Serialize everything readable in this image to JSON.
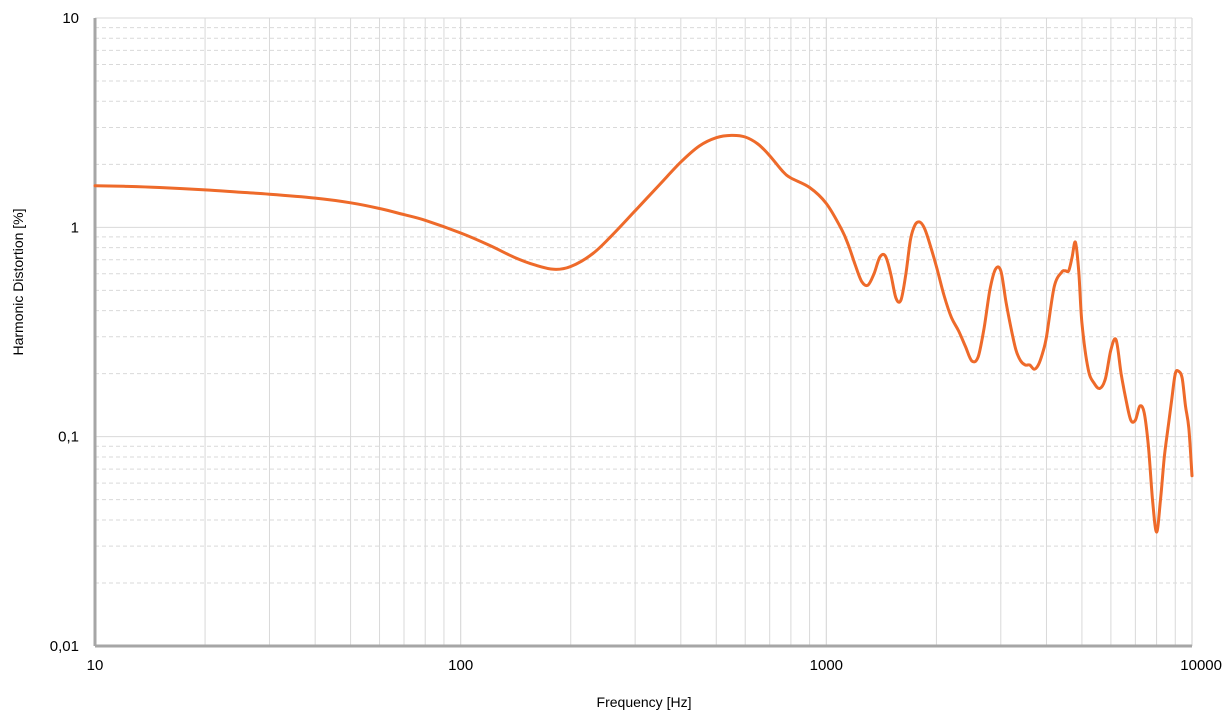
{
  "chart_data": {
    "type": "line",
    "title": "",
    "xlabel": "Frequency [Hz]",
    "ylabel": "Harmonic Distortion [%]",
    "xscale": "log",
    "yscale": "log",
    "xlim": [
      10,
      10000
    ],
    "ylim": [
      0.01,
      10
    ],
    "grid": true,
    "legend": "none",
    "x_ticks": [
      {
        "value": 10,
        "label": "10"
      },
      {
        "value": 100,
        "label": "100"
      },
      {
        "value": 1000,
        "label": "1000"
      },
      {
        "value": 10000,
        "label": "10000"
      }
    ],
    "y_ticks": [
      {
        "value": 0.01,
        "label": "0,01"
      },
      {
        "value": 0.1,
        "label": "0,1"
      },
      {
        "value": 1,
        "label": "1"
      },
      {
        "value": 10,
        "label": "10"
      }
    ],
    "colors": {
      "series": "#ee6a2a",
      "grid": "#d9d9d9",
      "axis": "#a6a6a6"
    },
    "series": [
      {
        "x": [
          10,
          12,
          15,
          20,
          25,
          30,
          40,
          50,
          60,
          70,
          80,
          100,
          120,
          140,
          160,
          180,
          200,
          230,
          260,
          300,
          350,
          400,
          450,
          500,
          550,
          600,
          650,
          700,
          760,
          800,
          900,
          1000,
          1100,
          1150,
          1200,
          1250,
          1300,
          1350,
          1400,
          1450,
          1500,
          1550,
          1600,
          1650,
          1700,
          1750,
          1800,
          1850,
          1900,
          2000,
          2100,
          2200,
          2300,
          2400,
          2500,
          2600,
          2700,
          2800,
          2900,
          3000,
          3100,
          3200,
          3300,
          3400,
          3500,
          3600,
          3700,
          3800,
          3900,
          4000,
          4200,
          4400,
          4500,
          4600,
          4700,
          4800,
          4900,
          5000,
          5200,
          5400,
          5600,
          5800,
          6000,
          6200,
          6400,
          6600,
          6800,
          7000,
          7200,
          7400,
          7600,
          7800,
          8000,
          8200,
          8400,
          8600,
          8800,
          9000,
          9200,
          9400,
          9600,
          9800,
          10000
        ],
        "values": [
          1.58,
          1.57,
          1.55,
          1.51,
          1.47,
          1.44,
          1.38,
          1.31,
          1.23,
          1.15,
          1.08,
          0.94,
          0.82,
          0.72,
          0.66,
          0.63,
          0.65,
          0.75,
          0.92,
          1.2,
          1.6,
          2.05,
          2.45,
          2.68,
          2.75,
          2.7,
          2.5,
          2.2,
          1.85,
          1.72,
          1.55,
          1.3,
          0.98,
          0.82,
          0.66,
          0.55,
          0.53,
          0.6,
          0.72,
          0.73,
          0.6,
          0.46,
          0.45,
          0.6,
          0.88,
          1.03,
          1.06,
          1.0,
          0.88,
          0.65,
          0.47,
          0.37,
          0.32,
          0.27,
          0.23,
          0.24,
          0.33,
          0.5,
          0.63,
          0.62,
          0.44,
          0.33,
          0.26,
          0.23,
          0.22,
          0.22,
          0.21,
          0.22,
          0.25,
          0.3,
          0.52,
          0.61,
          0.62,
          0.62,
          0.72,
          0.85,
          0.62,
          0.35,
          0.21,
          0.18,
          0.17,
          0.19,
          0.26,
          0.29,
          0.2,
          0.15,
          0.12,
          0.12,
          0.14,
          0.13,
          0.09,
          0.05,
          0.035,
          0.05,
          0.08,
          0.11,
          0.15,
          0.2,
          0.205,
          0.19,
          0.14,
          0.11,
          0.065
        ]
      }
    ]
  }
}
